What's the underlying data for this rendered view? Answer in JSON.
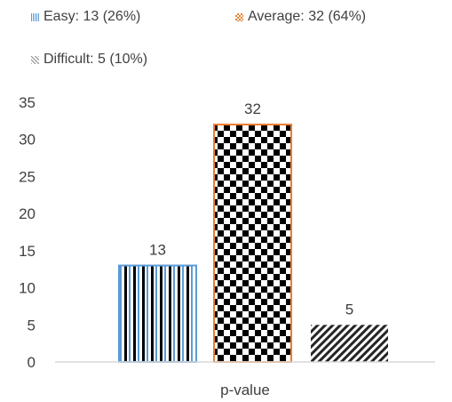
{
  "chart_data": {
    "type": "bar",
    "categories": [
      "p-value"
    ],
    "series": [
      {
        "name": "Easy: 13 (26%)",
        "values": [
          13
        ],
        "pattern": "vertical-stripes",
        "colors": [
          "#000000",
          "#5b9bd5"
        ]
      },
      {
        "name": "Average: 32 (64%)",
        "values": [
          32
        ],
        "pattern": "checkerboard",
        "colors": [
          "#000000",
          "#ed7d31"
        ]
      },
      {
        "name": "Difficult: 5 (10%)",
        "values": [
          5
        ],
        "pattern": "diagonal-stripes",
        "colors": [
          "#000000",
          "#a5a5a5"
        ]
      }
    ],
    "data_labels": [
      "13",
      "32",
      "5"
    ],
    "xlabel": "p-value",
    "ylabel": "",
    "ylim": [
      0,
      35
    ],
    "yticks": [
      "0",
      "5",
      "10",
      "15",
      "20",
      "25",
      "30",
      "35"
    ],
    "grid": false,
    "legend_position": "top"
  }
}
